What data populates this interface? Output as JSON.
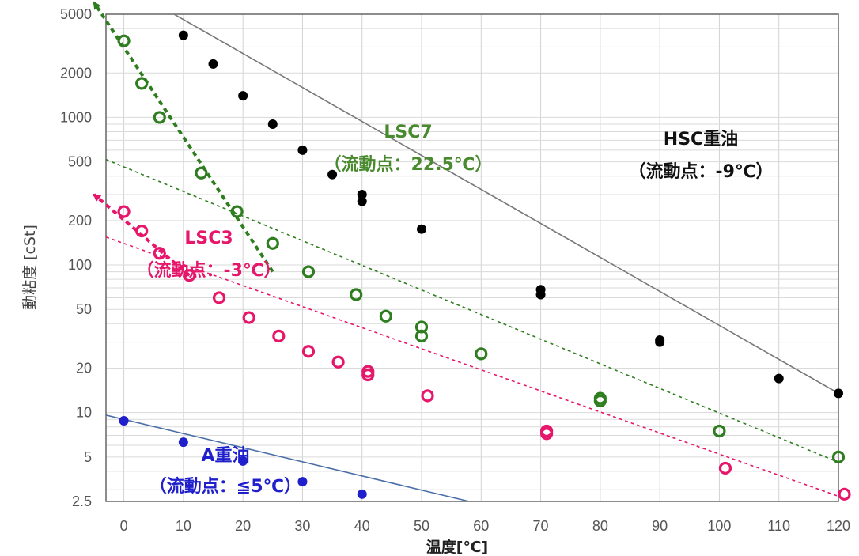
{
  "chart_data": {
    "type": "scatter",
    "xlabel": "温度[℃]",
    "ylabel": "動粘度 [cSt]",
    "xlim": [
      -3,
      120
    ],
    "ylim": [
      2.5,
      5000
    ],
    "yscale": "log",
    "x_ticks": [
      "0",
      "10",
      "20",
      "30",
      "40",
      "50",
      "60",
      "70",
      "80",
      "90",
      "100",
      "110",
      "120"
    ],
    "y_ticks": [
      "2.5",
      "5",
      "10",
      "20",
      "50",
      "100",
      "200",
      "500",
      "1000",
      "2000",
      "5000"
    ],
    "grid": true,
    "series": [
      {
        "key": "hsc",
        "color": "#000000",
        "marker": "filled",
        "points": [
          [
            10,
            3600
          ],
          [
            15,
            2300
          ],
          [
            20,
            1400
          ],
          [
            25,
            900
          ],
          [
            30,
            600
          ],
          [
            35,
            410
          ],
          [
            40,
            300
          ],
          [
            40,
            270
          ],
          [
            50,
            175
          ],
          [
            70,
            68
          ],
          [
            70,
            63
          ],
          [
            90,
            31
          ],
          [
            90,
            30
          ],
          [
            110,
            17
          ],
          [
            120,
            13.5
          ]
        ],
        "fit": {
          "from": [
            5,
            6000
          ],
          "to": [
            120,
            13.5
          ],
          "color": "#777777",
          "dash": "solid"
        },
        "label": "HSC重油",
        "sublabel": "（流動点：-9℃）"
      },
      {
        "key": "lsc7",
        "color": "#2e7d1f",
        "marker": "open",
        "points": [
          [
            0,
            3300
          ],
          [
            3,
            1700
          ],
          [
            6,
            1000
          ],
          [
            13,
            420
          ],
          [
            19,
            230
          ],
          [
            25,
            140
          ],
          [
            31,
            90
          ],
          [
            39,
            63
          ],
          [
            44,
            45
          ],
          [
            50,
            38
          ],
          [
            50,
            33
          ],
          [
            60,
            25
          ],
          [
            80,
            12.5
          ],
          [
            80,
            12
          ],
          [
            100,
            7.5
          ],
          [
            120,
            5
          ]
        ],
        "fit": {
          "from": [
            -5,
            560
          ],
          "to": [
            125,
            3.8
          ],
          "color": "#2e7d1f",
          "dash": "4 4"
        },
        "label": "LSC7",
        "sublabel": "（流動点：22.5℃）",
        "arrow": {
          "from": [
            25,
            90
          ],
          "to": [
            -5,
            6000
          ]
        }
      },
      {
        "key": "lsc3",
        "color": "#e6166b",
        "marker": "open",
        "points": [
          [
            0,
            230
          ],
          [
            3,
            170
          ],
          [
            6,
            120
          ],
          [
            11,
            85
          ],
          [
            16,
            60
          ],
          [
            21,
            44
          ],
          [
            26,
            33
          ],
          [
            31,
            26
          ],
          [
            36,
            22
          ],
          [
            41,
            19
          ],
          [
            41,
            18
          ],
          [
            51,
            13
          ],
          [
            71,
            7.5
          ],
          [
            71,
            7.2
          ],
          [
            101,
            4.2
          ],
          [
            121,
            2.8
          ]
        ],
        "fit": {
          "from": [
            -5,
            165
          ],
          "to": [
            125,
            2.3
          ],
          "color": "#e6166b",
          "dash": "4 4"
        },
        "label": "LSC3",
        "sublabel": "（流動点：-3℃）",
        "arrow": {
          "from": [
            11,
            85
          ],
          "to": [
            -5,
            300
          ]
        }
      },
      {
        "key": "a",
        "color": "#1f1fcc",
        "marker": "filled",
        "points": [
          [
            0,
            8.8
          ],
          [
            10,
            6.3
          ],
          [
            20,
            4.7
          ],
          [
            30,
            3.4
          ],
          [
            40,
            2.8
          ]
        ],
        "fit": {
          "from": [
            -3,
            9.6
          ],
          "to": [
            58,
            2.5
          ],
          "color": "#4a6fa8",
          "dash": "solid"
        },
        "label": "A重油",
        "sublabel": "（流動点：≦5℃）"
      }
    ]
  }
}
